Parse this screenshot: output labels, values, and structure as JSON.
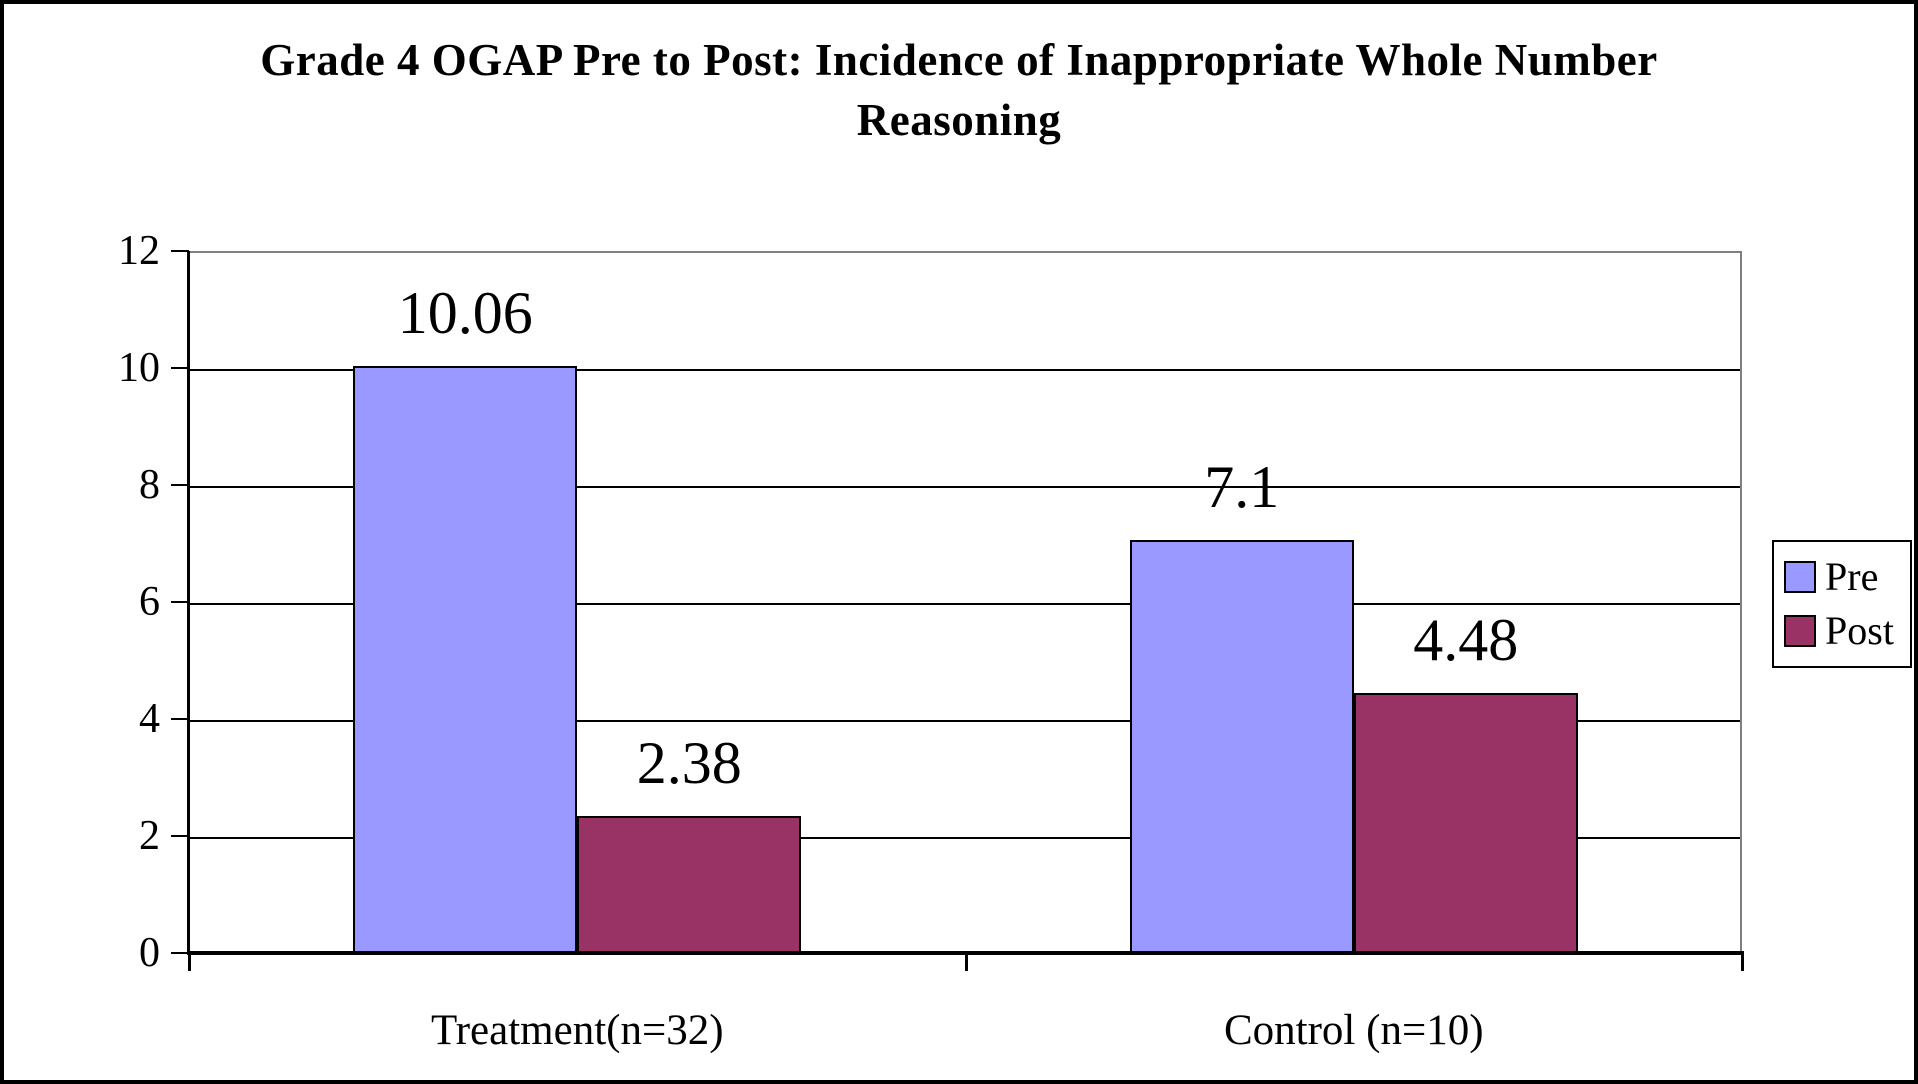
{
  "chart_data": {
    "type": "bar",
    "title_line1": "Grade 4 OGAP Pre to Post: Incidence of Inappropriate Whole Number",
    "title_line2": "Reasoning",
    "categories": [
      "Treatment(n=32)",
      "Control (n=10)"
    ],
    "series": [
      {
        "name": "Pre",
        "color": "#9999FF",
        "values": [
          10.06,
          7.1
        ],
        "labels": [
          "10.06",
          "7.1"
        ]
      },
      {
        "name": "Post",
        "color": "#993366",
        "values": [
          2.38,
          4.48
        ],
        "labels": [
          "2.38",
          "4.48"
        ]
      }
    ],
    "xlabel": "",
    "ylabel": "",
    "ylim": [
      0,
      12
    ],
    "yticks": [
      0,
      2,
      4,
      6,
      8,
      10,
      12
    ],
    "grid": true,
    "gridline_color": "#000000",
    "plot_border_color": "#808080",
    "legend_position": "right",
    "legend": {
      "items": [
        {
          "label": "Pre",
          "color": "#9999FF"
        },
        {
          "label": "Post",
          "color": "#993366"
        }
      ]
    }
  }
}
